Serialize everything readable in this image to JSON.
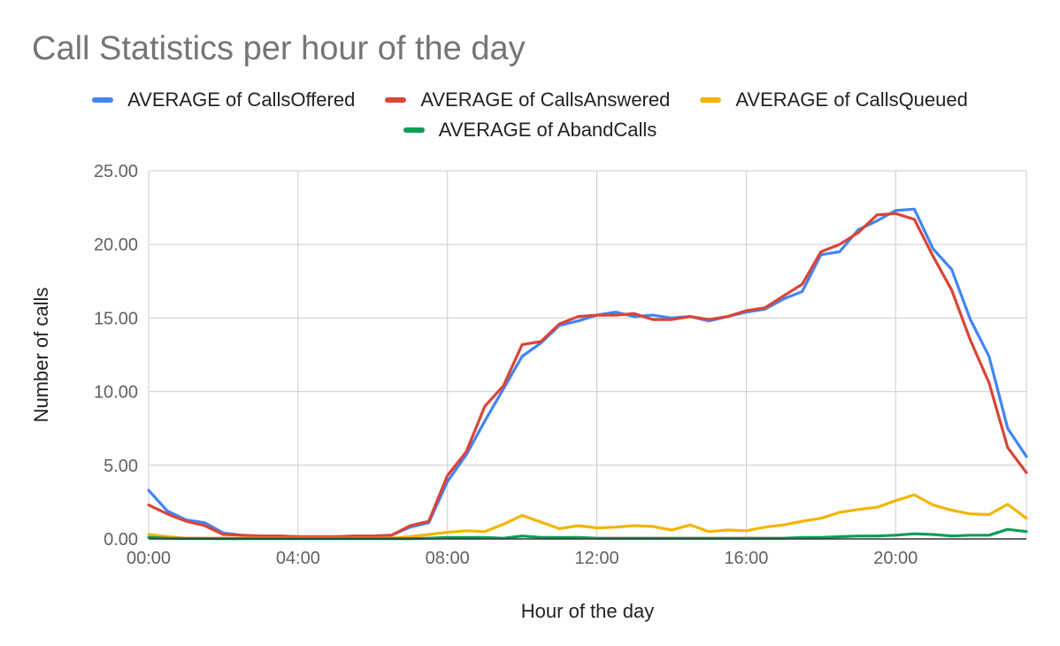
{
  "chart_data": {
    "type": "line",
    "title": "Call Statistics per hour of the day",
    "xlabel": "Hour of the day",
    "ylabel": "Number of calls",
    "xlim": [
      0,
      23.5
    ],
    "ylim": [
      0,
      25
    ],
    "x_ticks": [
      "00:00",
      "04:00",
      "08:00",
      "12:00",
      "16:00",
      "20:00"
    ],
    "y_ticks": [
      "0.00",
      "5.00",
      "10.00",
      "15.00",
      "20.00",
      "25.00"
    ],
    "grid": true,
    "legend_position": "top",
    "x": [
      0,
      0.5,
      1,
      1.5,
      2,
      2.5,
      3,
      3.5,
      4,
      4.5,
      5,
      5.5,
      6,
      6.5,
      7,
      7.5,
      8,
      8.5,
      9,
      9.5,
      10,
      10.5,
      11,
      11.5,
      12,
      12.5,
      13,
      13.5,
      14,
      14.5,
      15,
      15.5,
      16,
      16.5,
      17,
      17.5,
      18,
      18.5,
      19,
      19.5,
      20,
      20.5,
      21,
      21.5,
      22,
      22.5,
      23,
      23.5
    ],
    "series": [
      {
        "name": "AVERAGE of CallsOffered",
        "color": "#4285f4",
        "values": [
          3.3,
          1.9,
          1.3,
          1.1,
          0.4,
          0.25,
          0.2,
          0.2,
          0.15,
          0.15,
          0.15,
          0.2,
          0.2,
          0.25,
          0.8,
          1.1,
          3.9,
          5.7,
          8.0,
          10.2,
          12.4,
          13.3,
          14.5,
          14.8,
          15.2,
          15.4,
          15.1,
          15.2,
          15.0,
          15.1,
          14.8,
          15.1,
          15.4,
          15.6,
          16.3,
          16.8,
          19.3,
          19.5,
          21.0,
          21.6,
          22.3,
          22.4,
          19.7,
          18.3,
          14.9,
          12.4,
          7.5,
          5.6
        ]
      },
      {
        "name": "AVERAGE of CallsAnswered",
        "color": "#db4437",
        "values": [
          2.3,
          1.7,
          1.2,
          0.9,
          0.3,
          0.25,
          0.2,
          0.2,
          0.15,
          0.15,
          0.15,
          0.2,
          0.2,
          0.25,
          0.9,
          1.2,
          4.3,
          5.9,
          9.0,
          10.4,
          13.2,
          13.4,
          14.6,
          15.1,
          15.2,
          15.2,
          15.3,
          14.9,
          14.9,
          15.1,
          14.9,
          15.1,
          15.5,
          15.7,
          16.5,
          17.3,
          19.5,
          20.0,
          20.8,
          22.0,
          22.1,
          21.7,
          19.2,
          16.9,
          13.5,
          10.6,
          6.2,
          4.5
        ]
      },
      {
        "name": "AVERAGE of CallsQueued",
        "color": "#f4b400",
        "values": [
          0.3,
          0.15,
          0.05,
          0.05,
          0.05,
          0.05,
          0.05,
          0.05,
          0.05,
          0.05,
          0.05,
          0.05,
          0.05,
          0.05,
          0.15,
          0.3,
          0.45,
          0.55,
          0.5,
          1.0,
          1.6,
          1.15,
          0.7,
          0.9,
          0.75,
          0.8,
          0.9,
          0.85,
          0.6,
          0.95,
          0.5,
          0.6,
          0.55,
          0.8,
          0.95,
          1.2,
          1.4,
          1.8,
          2.0,
          2.15,
          2.6,
          3.0,
          2.3,
          1.95,
          1.7,
          1.65,
          2.35,
          1.4
        ]
      },
      {
        "name": "AVERAGE of AbandCalls",
        "color": "#0f9d58",
        "values": [
          0.1,
          0.05,
          0.03,
          0.03,
          0.02,
          0.02,
          0.02,
          0.02,
          0.02,
          0.02,
          0.02,
          0.02,
          0.02,
          0.02,
          0.02,
          0.05,
          0.1,
          0.1,
          0.1,
          0.05,
          0.2,
          0.1,
          0.1,
          0.1,
          0.05,
          0.05,
          0.05,
          0.05,
          0.05,
          0.05,
          0.05,
          0.05,
          0.05,
          0.05,
          0.05,
          0.1,
          0.1,
          0.15,
          0.2,
          0.2,
          0.25,
          0.35,
          0.3,
          0.2,
          0.25,
          0.25,
          0.65,
          0.5
        ]
      }
    ]
  }
}
